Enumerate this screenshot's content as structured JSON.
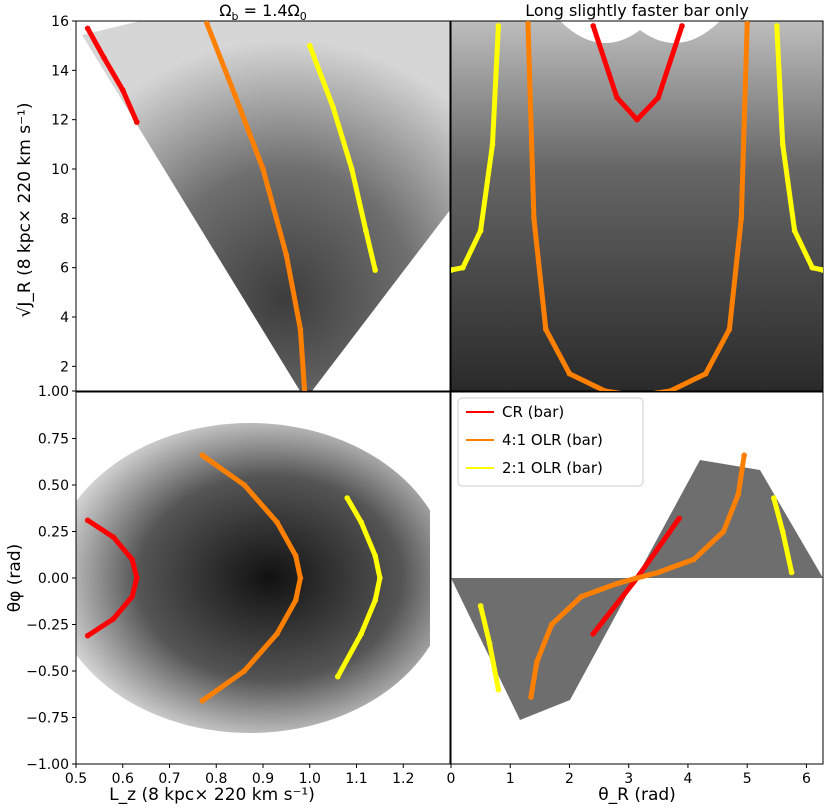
{
  "chart_data": [
    {
      "panel": "top-left",
      "type": "scatter",
      "title_html": "Ωb = 1.4Ω0",
      "title_main": "Ω",
      "title_sub1": "b",
      "title_mid": " = 1.4Ω",
      "title_sub2": "0",
      "xlim": [
        0.5,
        1.3
      ],
      "ylim": [
        1.0,
        16.0
      ],
      "ylabel": "√J_R (8 kpc× 220 km s⁻¹)",
      "yticks": [
        "1.00",
        "2",
        "4",
        "6",
        "8",
        "10",
        "12",
        "14",
        "16"
      ],
      "ytick_values": [
        1.0,
        2,
        4,
        6,
        8,
        10,
        12,
        14,
        16
      ],
      "series": [
        {
          "name": "CR (bar)",
          "color": "#ff0000",
          "x": [
            0.525,
            0.56,
            0.6,
            0.63
          ],
          "y": [
            15.7,
            14.5,
            13.2,
            11.9
          ]
        },
        {
          "name": "4:1 OLR (bar)",
          "color": "#ff8000",
          "x": [
            0.78,
            0.84,
            0.9,
            0.95,
            0.98,
            0.99
          ],
          "y": [
            15.9,
            13.0,
            10.0,
            6.5,
            3.5,
            0.7
          ]
        },
        {
          "name": "2:1 OLR (bar)",
          "color": "#ffff00",
          "x": [
            1.0,
            1.05,
            1.09,
            1.12,
            1.14
          ],
          "y": [
            15.0,
            12.5,
            10.0,
            7.5,
            5.9
          ]
        }
      ]
    },
    {
      "panel": "top-right",
      "type": "scatter",
      "title": "Long slightly faster bar only",
      "xlim": [
        0,
        6.28
      ],
      "ylim": [
        1.0,
        16.0
      ],
      "series": [
        {
          "name": "CR (bar)",
          "color": "#ff0000",
          "x": [
            2.4,
            2.8,
            3.14,
            3.5,
            3.9
          ],
          "y": [
            15.8,
            12.9,
            12.0,
            12.9,
            15.8
          ]
        },
        {
          "name": "4:1 OLR (bar)",
          "color": "#ff8000",
          "x": [
            1.3,
            1.4,
            1.6,
            2.0,
            2.6,
            3.14,
            3.7,
            4.3,
            4.7,
            4.9,
            5.0
          ],
          "y": [
            15.9,
            8.0,
            3.5,
            1.7,
            1.0,
            0.8,
            1.0,
            1.7,
            3.5,
            8.0,
            15.9
          ]
        },
        {
          "name": "2:1 OLR (bar)",
          "color": "#ffff00",
          "x": [
            0.0,
            0.2,
            0.5,
            0.7,
            0.8
          ],
          "y": [
            5.9,
            6.0,
            7.5,
            11.0,
            15.8
          ]
        },
        {
          "name": "2:1 OLR (bar) right",
          "color": "#ffff00",
          "x": [
            5.5,
            5.6,
            5.8,
            6.1,
            6.28
          ],
          "y": [
            15.8,
            11.0,
            7.5,
            6.0,
            5.9
          ]
        }
      ]
    },
    {
      "panel": "bottom-left",
      "type": "scatter",
      "xlim": [
        0.5,
        1.3
      ],
      "ylim": [
        -1.0,
        1.0
      ],
      "xlabel": "L_z (8 kpc× 220 km s⁻¹)",
      "ylabel": "θφ (rad)",
      "xticks": [
        "0.5",
        "0.6",
        "0.7",
        "0.8",
        "0.9",
        "1.0",
        "1.1",
        "1.2"
      ],
      "xtick_values": [
        0.5,
        0.6,
        0.7,
        0.8,
        0.9,
        1.0,
        1.1,
        1.2
      ],
      "yticks": [
        "−1.00",
        "−0.75",
        "−0.50",
        "−0.25",
        "0.00",
        "0.25",
        "0.50",
        "0.75"
      ],
      "ytick_values": [
        -1.0,
        -0.75,
        -0.5,
        -0.25,
        0.0,
        0.25,
        0.5,
        0.75
      ],
      "series": [
        {
          "name": "CR (bar)",
          "color": "#ff0000",
          "x": [
            0.525,
            0.58,
            0.62,
            0.63,
            0.62,
            0.58,
            0.525
          ],
          "y": [
            0.31,
            0.22,
            0.1,
            0.0,
            -0.1,
            -0.22,
            -0.31
          ]
        },
        {
          "name": "4:1 OLR (bar)",
          "color": "#ff8000",
          "x": [
            0.77,
            0.86,
            0.93,
            0.97,
            0.98,
            0.97,
            0.93,
            0.86,
            0.77
          ],
          "y": [
            0.66,
            0.5,
            0.3,
            0.12,
            0.0,
            -0.12,
            -0.3,
            -0.5,
            -0.66
          ]
        },
        {
          "name": "2:1 OLR (bar)",
          "color": "#ffff00",
          "x": [
            1.08,
            1.11,
            1.14,
            1.15,
            1.14,
            1.11,
            1.06
          ],
          "y": [
            0.43,
            0.3,
            0.12,
            0.0,
            -0.12,
            -0.3,
            -0.53
          ]
        }
      ]
    },
    {
      "panel": "bottom-right",
      "type": "scatter",
      "xlim": [
        0,
        6.28
      ],
      "ylim": [
        -1.0,
        1.0
      ],
      "xlabel": "θ_R (rad)",
      "xticks": [
        "0",
        "1",
        "2",
        "3",
        "4",
        "5",
        "6"
      ],
      "xtick_values": [
        0,
        1,
        2,
        3,
        4,
        5,
        6
      ],
      "series": [
        {
          "name": "CR (bar)",
          "color": "#ff0000",
          "x": [
            2.4,
            3.14,
            3.85
          ],
          "y": [
            -0.3,
            0.0,
            0.32
          ]
        },
        {
          "name": "4:1 OLR (bar)",
          "color": "#ff8000",
          "x": [
            1.35,
            1.45,
            1.7,
            2.2,
            2.8,
            3.14,
            3.5,
            4.1,
            4.6,
            4.85,
            4.95
          ],
          "y": [
            -0.64,
            -0.45,
            -0.25,
            -0.1,
            -0.03,
            0.0,
            0.03,
            0.1,
            0.25,
            0.45,
            0.66
          ]
        },
        {
          "name": "2:1 OLR (bar)",
          "color": "#ffff00",
          "x": [
            0.5,
            0.65,
            0.8
          ],
          "y": [
            -0.15,
            -0.35,
            -0.6
          ]
        },
        {
          "name": "2:1 OLR (bar) right",
          "color": "#ffff00",
          "x": [
            5.45,
            5.6,
            5.75
          ],
          "y": [
            0.43,
            0.25,
            0.03
          ]
        }
      ]
    }
  ],
  "legend": {
    "location": "upper-left of bottom-right panel",
    "entries": [
      {
        "label": "CR (bar)",
        "color": "#ff0000"
      },
      {
        "label": "4:1 OLR (bar)",
        "color": "#ff8000"
      },
      {
        "label": "2:1 OLR (bar)",
        "color": "#ffff00"
      }
    ]
  },
  "colors": {
    "cr": "#ff0000",
    "olr41": "#ff8000",
    "olr21": "#ffff00"
  }
}
